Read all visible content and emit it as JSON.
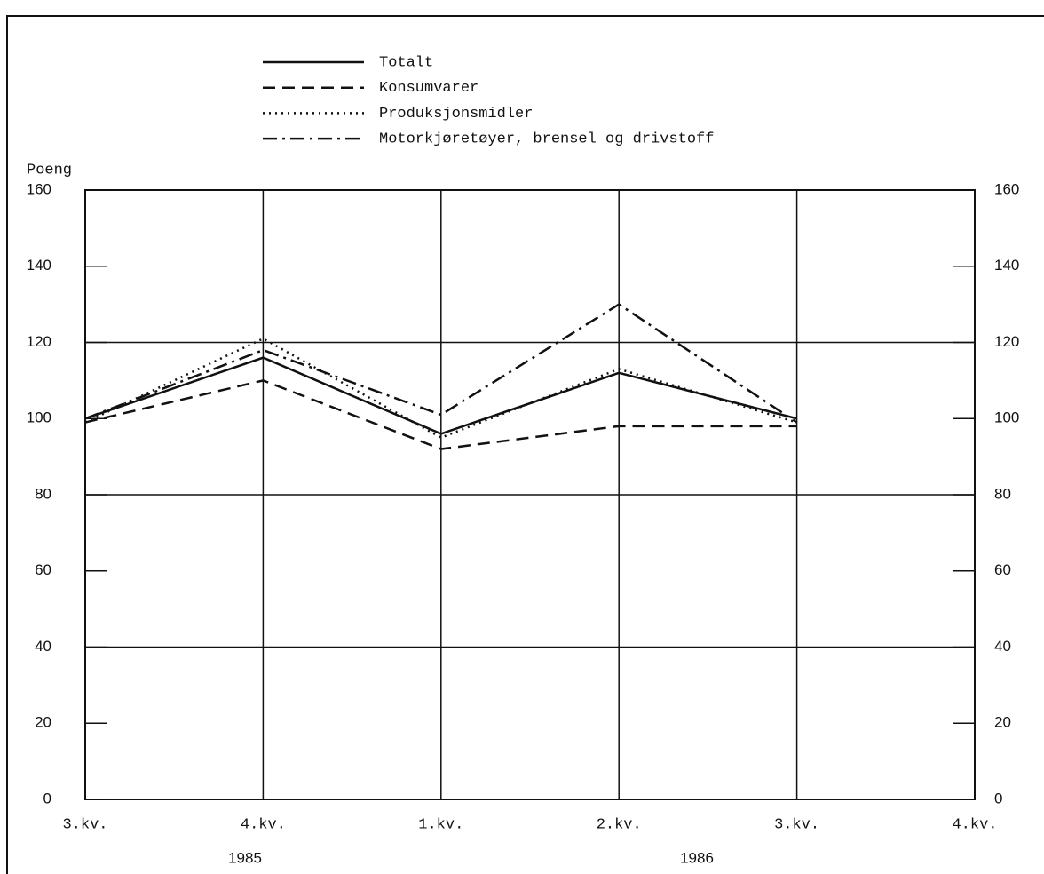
{
  "chart_data": {
    "type": "line",
    "y_label": "Poeng",
    "categories": [
      "3.kv.",
      "4.kv.",
      "1.kv.",
      "2.kv.",
      "3.kv.",
      "4.kv."
    ],
    "year_labels": [
      "1985",
      "1986"
    ],
    "series": [
      {
        "name": "Totalt",
        "color": "#111111",
        "dash": "solid",
        "values": [
          100,
          116,
          96,
          112,
          100,
          null
        ]
      },
      {
        "name": "Konsumvarer",
        "color": "#111111",
        "dash": "dashed",
        "values": [
          99,
          110,
          92,
          98,
          98,
          null
        ]
      },
      {
        "name": "Produksjonsmidler",
        "color": "#111111",
        "dash": "dotted",
        "values": [
          99,
          121,
          95,
          113,
          99,
          null
        ]
      },
      {
        "name": "Motorkjøretøyer, brensel og drivstoff",
        "color": "#111111",
        "dash": "dashdot",
        "values": [
          100,
          118,
          101,
          130,
          99,
          null
        ]
      }
    ],
    "ylim": [
      0,
      160
    ],
    "yticks": [
      0,
      20,
      40,
      60,
      80,
      100,
      120,
      140,
      160
    ],
    "grid_y": [
      40,
      80,
      120
    ],
    "legend": "top"
  }
}
